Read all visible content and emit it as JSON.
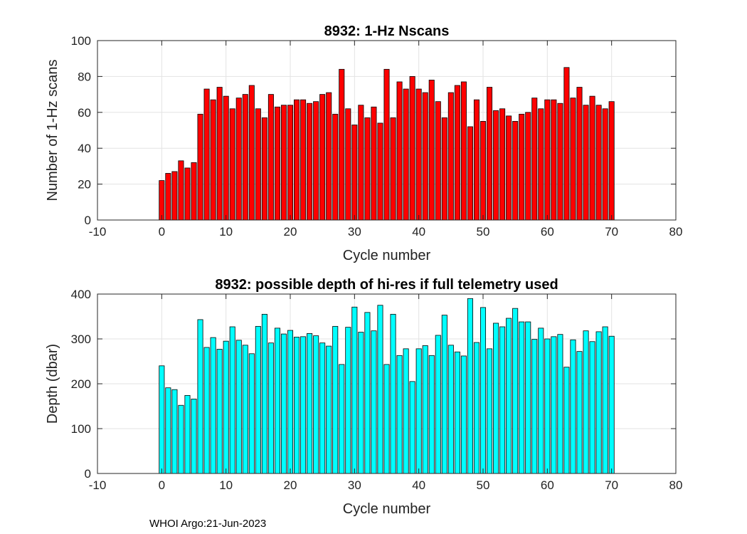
{
  "chart_data": [
    {
      "type": "bar",
      "title": "8932: 1-Hz Nscans",
      "xlabel": "Cycle number",
      "ylabel": "Number of 1-Hz scans",
      "xlim": [
        -10,
        80
      ],
      "ylim": [
        0,
        100
      ],
      "xticks": [
        "-10",
        "0",
        "10",
        "20",
        "30",
        "40",
        "50",
        "60",
        "70",
        "80"
      ],
      "yticks": [
        "0",
        "20",
        "40",
        "60",
        "80",
        "100"
      ],
      "grid": true,
      "color": "#ff0000",
      "x": [
        0,
        1,
        2,
        3,
        4,
        5,
        6,
        7,
        8,
        9,
        10,
        11,
        12,
        13,
        14,
        15,
        16,
        17,
        18,
        19,
        20,
        21,
        22,
        23,
        24,
        25,
        26,
        27,
        28,
        29,
        30,
        31,
        32,
        33,
        34,
        35,
        36,
        37,
        38,
        39,
        40,
        41,
        42,
        43,
        44,
        45,
        46,
        47,
        48,
        49,
        50,
        51,
        52,
        53,
        54,
        55,
        56,
        57,
        58,
        59,
        60,
        61,
        62,
        63,
        64,
        65,
        66,
        67,
        68,
        69,
        70
      ],
      "values": [
        22,
        26,
        27,
        33,
        29,
        32,
        59,
        73,
        67,
        74,
        69,
        62,
        68,
        70,
        75,
        62,
        57,
        70,
        63,
        64,
        64,
        67,
        67,
        65,
        66,
        70,
        71,
        59,
        84,
        62,
        53,
        64,
        57,
        63,
        54,
        84,
        57,
        77,
        73,
        80,
        73,
        71,
        78,
        66,
        57,
        71,
        75,
        77,
        52,
        67,
        55,
        74,
        61,
        62,
        58,
        55,
        59,
        60,
        68,
        62,
        67,
        67,
        65,
        85,
        68,
        74,
        64,
        69,
        64,
        62,
        66
      ]
    },
    {
      "type": "bar",
      "title": "8932: possible depth of hi-res if full telemetry used",
      "xlabel": "Cycle number",
      "ylabel": "Depth (dbar)",
      "xlim": [
        -10,
        80
      ],
      "ylim": [
        0,
        400
      ],
      "xticks": [
        "-10",
        "0",
        "10",
        "20",
        "30",
        "40",
        "50",
        "60",
        "70",
        "80"
      ],
      "yticks": [
        "0",
        "100",
        "200",
        "300",
        "400"
      ],
      "grid": true,
      "color": "#00ffff",
      "x": [
        0,
        1,
        2,
        3,
        4,
        5,
        6,
        7,
        8,
        9,
        10,
        11,
        12,
        13,
        14,
        15,
        16,
        17,
        18,
        19,
        20,
        21,
        22,
        23,
        24,
        25,
        26,
        27,
        28,
        29,
        30,
        31,
        32,
        33,
        34,
        35,
        36,
        37,
        38,
        39,
        40,
        41,
        42,
        43,
        44,
        45,
        46,
        47,
        48,
        49,
        50,
        51,
        52,
        53,
        54,
        55,
        56,
        57,
        58,
        59,
        60,
        61,
        62,
        63,
        64,
        65,
        66,
        67,
        68,
        69,
        70
      ],
      "values": [
        240,
        191,
        187,
        152,
        174,
        166,
        343,
        281,
        303,
        277,
        295,
        327,
        297,
        286,
        267,
        328,
        355,
        291,
        324,
        311,
        319,
        304,
        305,
        312,
        307,
        291,
        284,
        328,
        243,
        326,
        371,
        315,
        359,
        318,
        375,
        243,
        355,
        263,
        278,
        205,
        278,
        285,
        263,
        308,
        353,
        286,
        271,
        262,
        390,
        292,
        370,
        278,
        335,
        327,
        346,
        368,
        338,
        338,
        299,
        324,
        300,
        305,
        310,
        237,
        298,
        272,
        318,
        294,
        316,
        327,
        306
      ]
    }
  ],
  "footer": "WHOI Argo:21-Jun-2023"
}
